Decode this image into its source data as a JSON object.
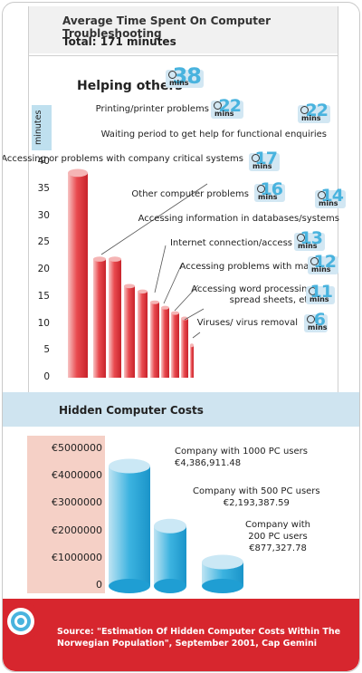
{
  "header": {
    "title": "Average Time Spent On Computer Troubleshooting",
    "total": "Total: 171 minutes"
  },
  "section2": {
    "title": "Hidden Computer Costs"
  },
  "footer": {
    "source": "Source: \"Estimation Of Hidden Computer Costs Within The Norwegian Population\", September 2001, Cap Gemini"
  },
  "colors": {
    "red_bar": "#e23a3f",
    "blue_bar": "#2aa8db",
    "footer": "#d7262e",
    "badge": "#49b3de"
  },
  "chart_data": [
    {
      "type": "bar",
      "title": "Average Time Spent On Computer Troubleshooting",
      "subtitle": "Total: 171 minutes",
      "ylabel": "minutes",
      "unit": "mins",
      "ylim": [
        0,
        40
      ],
      "yticks": [
        0,
        5,
        10,
        15,
        20,
        25,
        30,
        35,
        40
      ],
      "categories": [
        "Helping others",
        "Printing/printer problems",
        "Waiting period to get help for functional enquiries",
        "Accessing or problems with company critical systems",
        "Other computer problems",
        "Accessing information in databases/systems",
        "Internet connection/access",
        "Accessing problems with mail",
        "Accessing word processing, spread sheets, etc.",
        "Viruses/ virus removal"
      ],
      "values": [
        38,
        22,
        22,
        17,
        16,
        14,
        13,
        12,
        11,
        6
      ]
    },
    {
      "type": "bar",
      "title": "Hidden Computer Costs",
      "ylim": [
        0,
        5000000
      ],
      "yticks": [
        "0",
        "€1000000",
        "€2000000",
        "€3000000",
        "€4000000",
        "€5000000"
      ],
      "categories": [
        "Company with 1000 PC users",
        "Company with 500 PC users",
        "Company with 200 PC users"
      ],
      "values": [
        4386911.48,
        2193387.59,
        877327.78
      ],
      "value_labels": [
        "€4,386,911.48",
        "€2,193,387.59",
        "€877,327.78"
      ]
    }
  ]
}
